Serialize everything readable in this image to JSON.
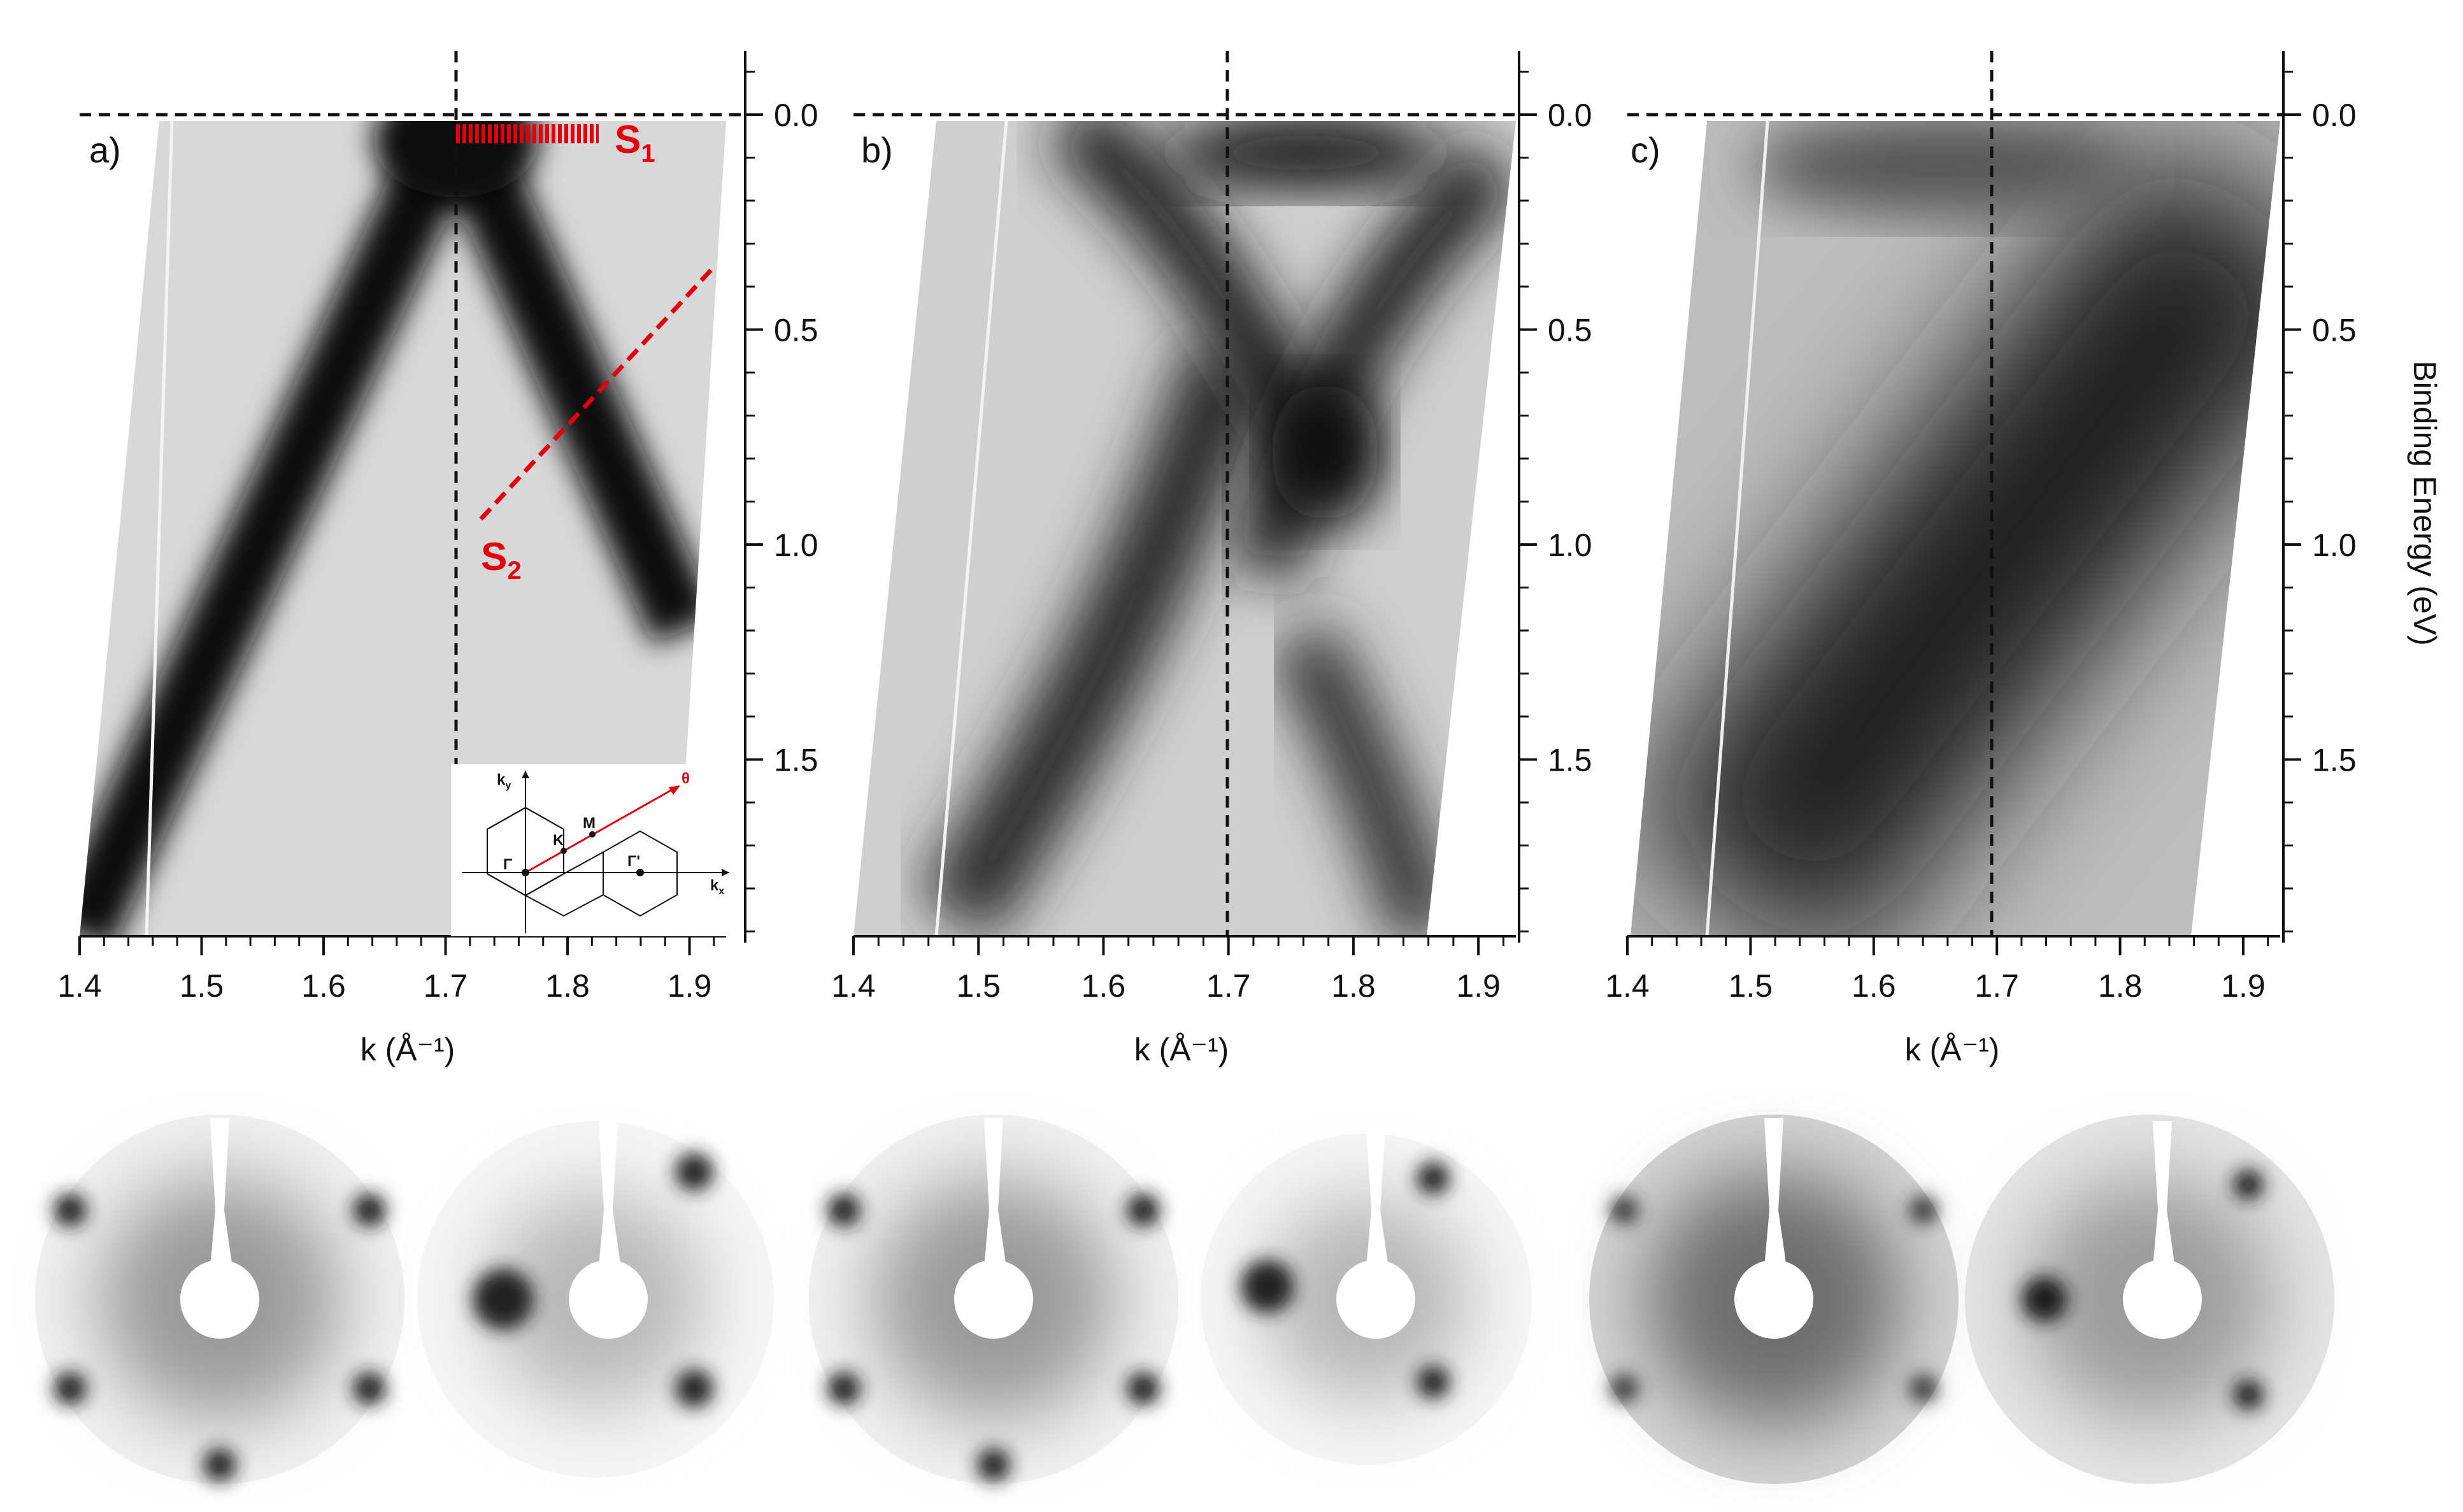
{
  "figure": {
    "panels": [
      {
        "tag": "a)",
        "xlabel": "k (Å⁻¹)",
        "band": "two-branch"
      },
      {
        "tag": "b)",
        "xlabel": "k (Å⁻¹)",
        "band": "mixed"
      },
      {
        "tag": "c)",
        "xlabel": "k (Å⁻¹)",
        "band": "diffuse"
      }
    ],
    "x_ticks": [
      "1.4",
      "1.5",
      "1.6",
      "1.7",
      "1.8",
      "1.9"
    ],
    "y_ticks": [
      "0.0",
      "0.5",
      "1.0",
      "1.5"
    ],
    "ylabel": "Binding Energy (eV)",
    "annotations": {
      "s1": "S",
      "s1_sub": "1",
      "s2": "S",
      "s2_sub": "2"
    },
    "inset": {
      "ky": "k",
      "ky_sub": "y",
      "kx": "k",
      "kx_sub": "x",
      "gamma": "Γ",
      "gamma_prime": "Γ'",
      "K": "K",
      "M": "M",
      "theta": "θ"
    },
    "colors": {
      "annotation_red": "#e3000f",
      "intensity_dark": "#111111",
      "background": "#ffffff"
    }
  },
  "chart_data": [
    {
      "type": "heatmap",
      "panel": "a)",
      "xlabel": "k (Å⁻¹)",
      "ylabel": "Binding Energy (eV)",
      "xlim": [
        1.4,
        1.93
      ],
      "ylim": [
        1.95,
        -0.1
      ],
      "reference_lines": {
        "k": 1.7,
        "binding_energy": 0.0
      },
      "ridges": [
        [
          [
            1.4,
            1.95
          ],
          [
            1.7,
            0.0
          ],
          [
            1.9,
            1.0
          ]
        ]
      ]
    },
    {
      "type": "heatmap",
      "panel": "b)",
      "xlabel": "k (Å⁻¹)",
      "ylabel": "Binding Energy (eV)",
      "xlim": [
        1.4,
        1.93
      ],
      "ylim": [
        1.95,
        -0.1
      ],
      "reference_lines": {
        "k": 1.7,
        "binding_energy": 0.0
      }
    },
    {
      "type": "heatmap",
      "panel": "c)",
      "xlabel": "k (Å⁻¹)",
      "ylabel": "Binding Energy (eV)",
      "xlim": [
        1.4,
        1.93
      ],
      "ylim": [
        1.95,
        -0.1
      ],
      "reference_lines": {
        "k": 1.7,
        "binding_energy": 0.0
      }
    }
  ]
}
